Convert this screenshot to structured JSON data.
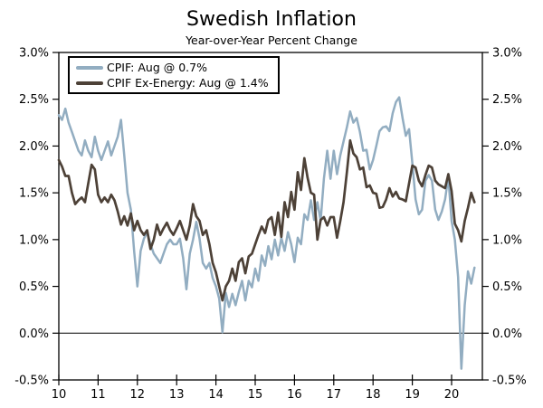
{
  "chart_data": {
    "type": "line",
    "title": "Swedish Inflation",
    "subtitle": "Year-over-Year Percent Change",
    "x_start": "2010-01",
    "x_end": "2020-08",
    "x_tick_labels": [
      "10",
      "11",
      "12",
      "13",
      "14",
      "15",
      "16",
      "17",
      "18",
      "19",
      "20"
    ],
    "x_tick_month_positions": [
      0,
      12,
      24,
      36,
      48,
      60,
      72,
      84,
      96,
      108,
      120
    ],
    "ylim": [
      -0.5,
      3.0
    ],
    "y_ticks": [
      3.0,
      2.5,
      2.0,
      1.5,
      1.0,
      0.5,
      0.0,
      -0.5
    ],
    "y_tick_labels": [
      "3.0%",
      "2.5%",
      "2.0%",
      "1.5%",
      "1.0%",
      "0.5%",
      "0.0%",
      "-0.5%"
    ],
    "y_axis_both_sides": true,
    "zero_reference_line": 0.0,
    "grid": "off",
    "legend_position": "top-left",
    "series": [
      {
        "name": "CPIF",
        "legend_label": "CPIF: Aug @ 0.7%",
        "color": "#92adc1",
        "stroke_width": 2.5,
        "values": [
          2.33,
          2.28,
          2.4,
          2.25,
          2.15,
          2.05,
          1.95,
          1.9,
          2.06,
          1.95,
          1.88,
          2.1,
          1.95,
          1.85,
          1.95,
          2.05,
          1.9,
          2.0,
          2.1,
          2.28,
          1.9,
          1.5,
          1.32,
          0.88,
          0.5,
          0.88,
          1.01,
          1.08,
          0.95,
          0.85,
          0.8,
          0.75,
          0.85,
          0.95,
          1.0,
          0.95,
          0.95,
          1.01,
          0.8,
          0.47,
          0.85,
          1.0,
          1.19,
          1.01,
          0.75,
          0.69,
          0.75,
          0.59,
          0.5,
          0.37,
          0.01,
          0.43,
          0.28,
          0.42,
          0.3,
          0.44,
          0.56,
          0.35,
          0.56,
          0.49,
          0.69,
          0.56,
          0.83,
          0.72,
          0.93,
          0.79,
          1.0,
          0.83,
          1.02,
          0.88,
          1.08,
          0.95,
          0.76,
          1.02,
          0.95,
          1.27,
          1.21,
          1.42,
          1.21,
          1.4,
          1.2,
          1.65,
          1.95,
          1.65,
          1.95,
          1.7,
          1.9,
          2.05,
          2.2,
          2.37,
          2.25,
          2.3,
          2.15,
          1.95,
          1.96,
          1.75,
          1.85,
          2.0,
          2.16,
          2.2,
          2.21,
          2.16,
          2.35,
          2.47,
          2.52,
          2.3,
          2.11,
          2.18,
          1.82,
          1.43,
          1.27,
          1.32,
          1.63,
          1.69,
          1.63,
          1.32,
          1.21,
          1.3,
          1.43,
          1.67,
          1.2,
          1.0,
          0.6,
          -0.38,
          0.3,
          0.66,
          0.53,
          0.7
        ]
      },
      {
        "name": "CPIF Ex-Energy",
        "legend_label": "CPIF Ex-Energy: Aug @ 1.4%",
        "color": "#4d4137",
        "stroke_width": 2.7,
        "values": [
          1.85,
          1.78,
          1.68,
          1.68,
          1.5,
          1.38,
          1.42,
          1.45,
          1.4,
          1.6,
          1.8,
          1.75,
          1.48,
          1.4,
          1.45,
          1.4,
          1.48,
          1.42,
          1.3,
          1.16,
          1.25,
          1.15,
          1.28,
          1.1,
          1.2,
          1.1,
          1.05,
          1.1,
          0.9,
          1.0,
          1.16,
          1.05,
          1.12,
          1.18,
          1.1,
          1.05,
          1.12,
          1.2,
          1.1,
          1.0,
          1.15,
          1.38,
          1.25,
          1.2,
          1.05,
          1.1,
          0.95,
          0.75,
          0.65,
          0.5,
          0.35,
          0.5,
          0.56,
          0.69,
          0.56,
          0.76,
          0.8,
          0.64,
          0.82,
          0.85,
          0.95,
          1.05,
          1.14,
          1.07,
          1.21,
          1.24,
          1.05,
          1.29,
          1.03,
          1.4,
          1.24,
          1.51,
          1.32,
          1.72,
          1.53,
          1.87,
          1.66,
          1.5,
          1.48,
          1.0,
          1.21,
          1.24,
          1.15,
          1.24,
          1.24,
          1.02,
          1.2,
          1.4,
          1.72,
          2.06,
          1.92,
          1.88,
          1.75,
          1.77,
          1.56,
          1.58,
          1.5,
          1.49,
          1.34,
          1.35,
          1.43,
          1.55,
          1.46,
          1.51,
          1.44,
          1.43,
          1.41,
          1.6,
          1.79,
          1.77,
          1.63,
          1.57,
          1.69,
          1.79,
          1.77,
          1.63,
          1.59,
          1.57,
          1.55,
          1.7,
          1.52,
          1.17,
          1.1,
          0.98,
          1.2,
          1.34,
          1.5,
          1.4
        ]
      }
    ]
  }
}
